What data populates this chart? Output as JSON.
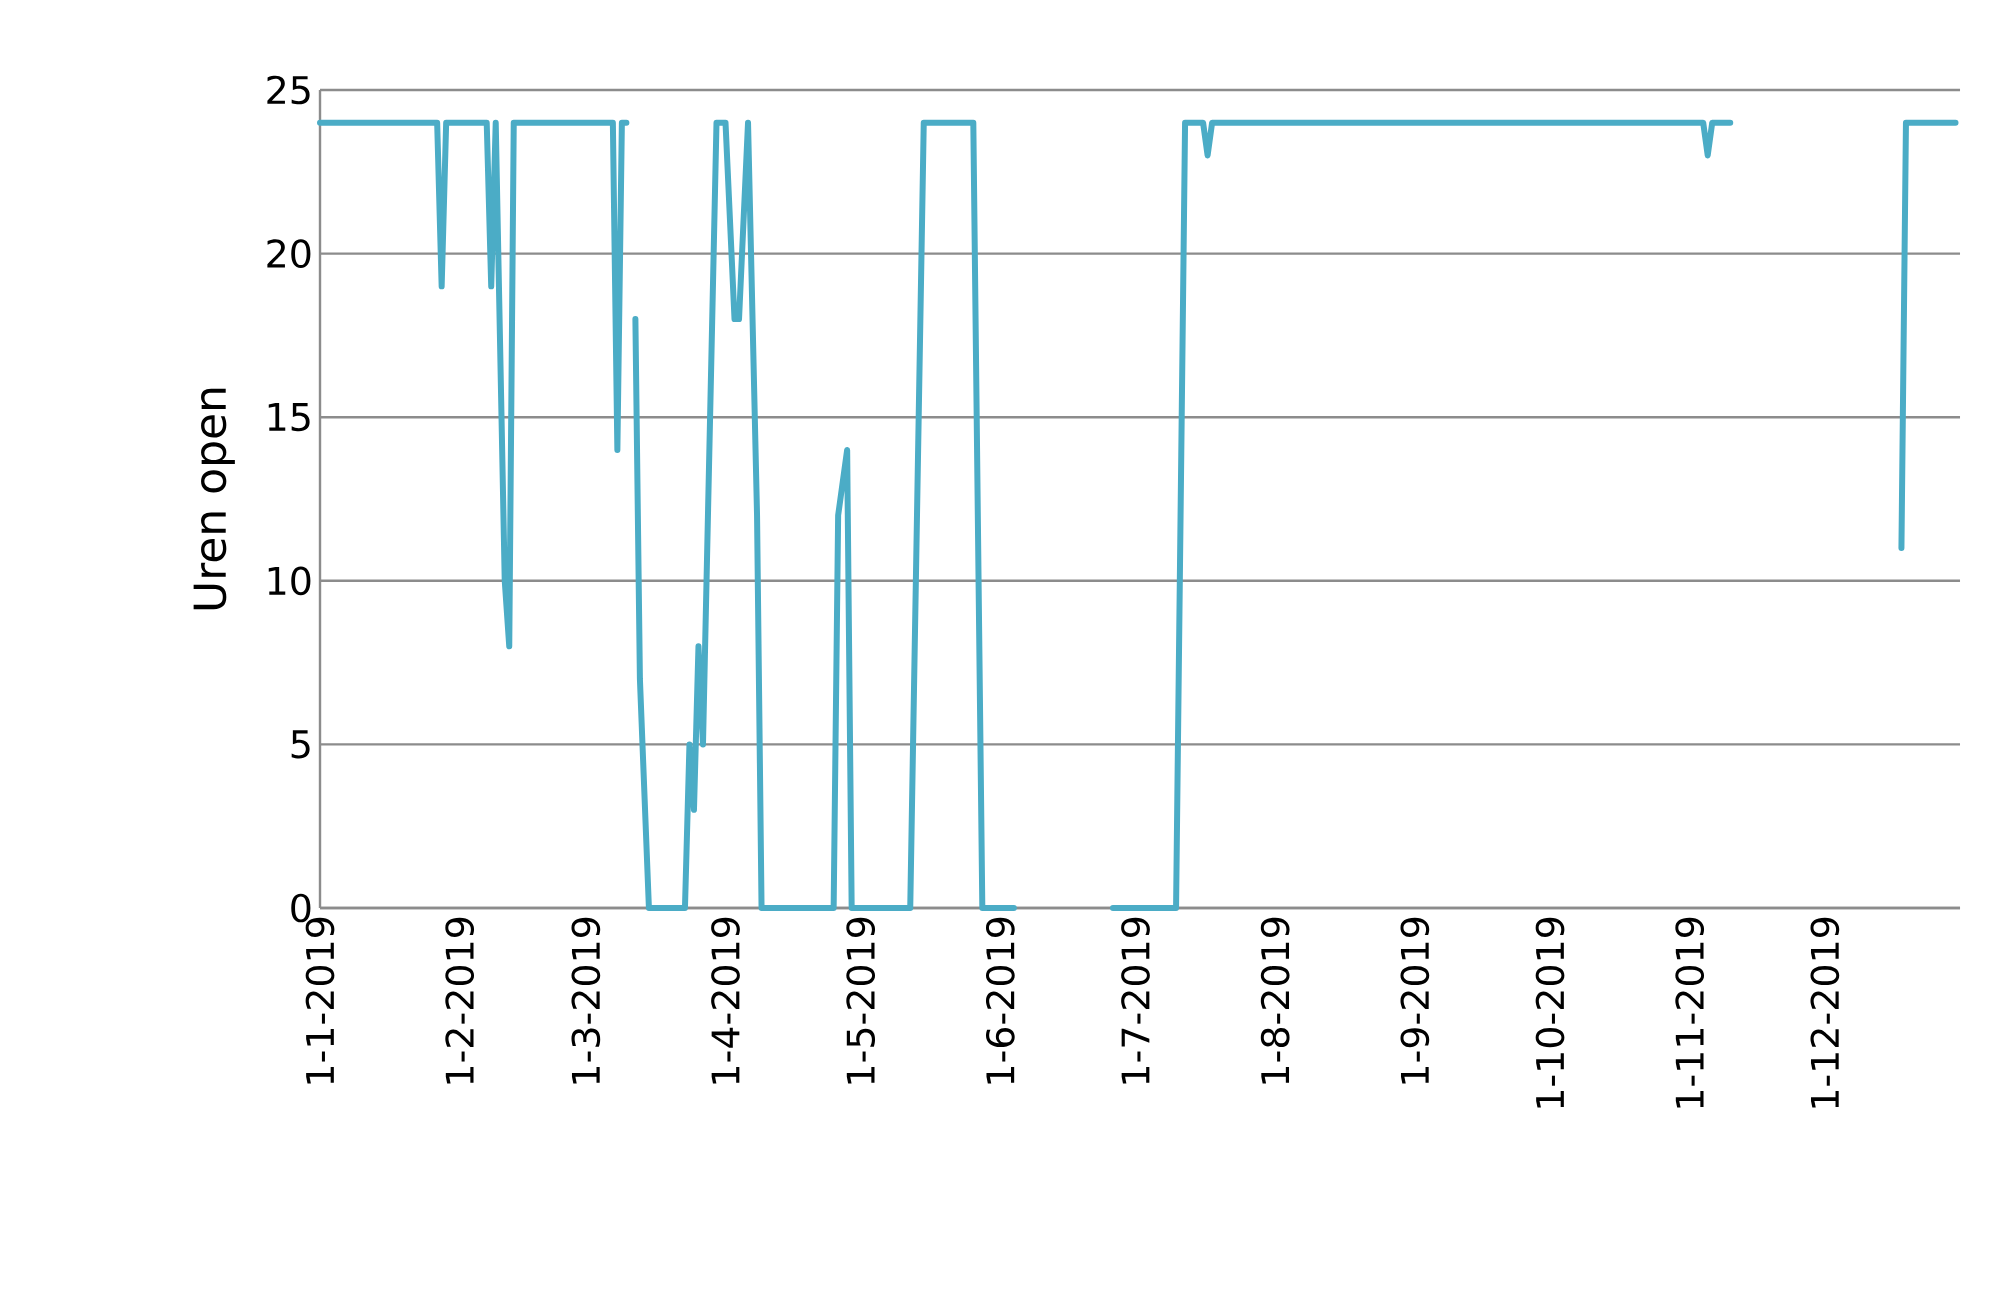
{
  "chart_data": {
    "type": "line",
    "ylabel": "Uren open",
    "x": [
      "2019-01-01",
      "2019-01-27",
      "2019-01-28",
      "2019-01-29",
      "2019-02-07",
      "2019-02-08",
      "2019-02-09",
      "2019-02-11",
      "2019-02-12",
      "2019-02-13",
      "2019-03-07",
      "2019-03-08",
      "2019-03-09",
      "2019-03-10",
      "2019-03-11",
      "2019-03-12",
      "2019-03-13",
      "2019-03-15",
      "2019-03-23",
      "2019-03-24",
      "2019-03-25",
      "2019-03-26",
      "2019-03-27",
      "2019-03-30",
      "2019-04-01",
      "2019-04-03",
      "2019-04-04",
      "2019-04-06",
      "2019-04-08",
      "2019-04-09",
      "2019-04-25",
      "2019-04-26",
      "2019-04-28",
      "2019-04-29",
      "2019-05-12",
      "2019-05-15",
      "2019-05-26",
      "2019-05-28",
      "2019-06-04",
      "2019-06-05",
      "2019-06-26",
      "2019-07-10",
      "2019-07-12",
      "2019-07-16",
      "2019-07-17",
      "2019-07-18",
      "2019-11-04",
      "2019-11-05",
      "2019-11-06",
      "2019-11-10",
      "2019-11-11",
      "2019-12-18",
      "2019-12-19",
      "2019-12-30"
    ],
    "series": [
      {
        "color": "#4bacc6",
        "values": [
          24,
          24,
          19,
          24,
          24,
          19,
          24,
          10,
          8,
          24,
          24,
          14,
          24,
          24,
          null,
          18,
          7,
          0,
          0,
          5,
          3,
          8,
          5,
          24,
          24,
          18,
          18,
          24,
          12,
          0,
          0,
          12,
          14,
          0,
          0,
          24,
          24,
          0,
          0,
          null,
          0,
          0,
          24,
          24,
          23,
          24,
          24,
          23,
          24,
          24,
          null,
          11,
          24,
          24
        ]
      }
    ],
    "xlim": [
      "2019-01-01",
      "2019-12-31"
    ],
    "xticks": [
      {
        "value": "2019-01-01",
        "label": "1-1-2019"
      },
      {
        "value": "2019-02-01",
        "label": "1-2-2019"
      },
      {
        "value": "2019-03-01",
        "label": "1-3-2019"
      },
      {
        "value": "2019-04-01",
        "label": "1-4-2019"
      },
      {
        "value": "2019-05-01",
        "label": "1-5-2019"
      },
      {
        "value": "2019-06-01",
        "label": "1-6-2019"
      },
      {
        "value": "2019-07-01",
        "label": "1-7-2019"
      },
      {
        "value": "2019-08-01",
        "label": "1-8-2019"
      },
      {
        "value": "2019-09-01",
        "label": "1-9-2019"
      },
      {
        "value": "2019-10-01",
        "label": "1-10-2019"
      },
      {
        "value": "2019-11-01",
        "label": "1-11-2019"
      },
      {
        "value": "2019-12-01",
        "label": "1-12-2019"
      }
    ],
    "ylim": [
      0,
      25
    ],
    "yticks": [
      0,
      5,
      10,
      15,
      20,
      25
    ],
    "grid": "y",
    "marker": "none",
    "line_style": "solid"
  }
}
